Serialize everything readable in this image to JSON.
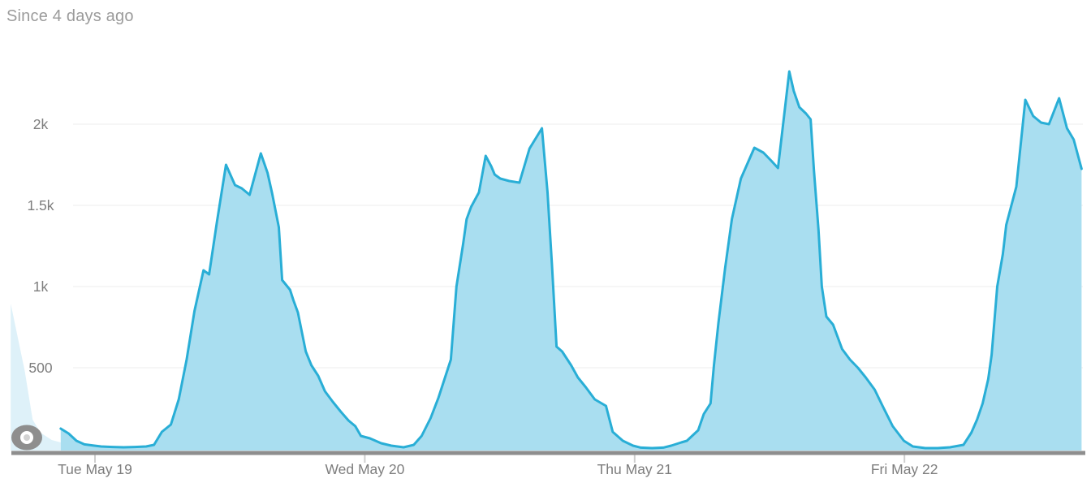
{
  "colors": {
    "line": "#29aed6",
    "area_fill": "#a9def0",
    "faded_fill": "#def1f9",
    "grid": "#eeeeee",
    "axis_bar": "#8e8e8e",
    "tick": "#cfcfcf",
    "axis_label": "#7d7d7d",
    "title": "#9b9b9b",
    "icon_ring": "#8e8e8e",
    "icon_inner": "#ffffff",
    "icon_center": "#d2d2d2"
  },
  "chart_data": {
    "type": "area",
    "title": "Since 4 days ago",
    "xlabel": "",
    "ylabel": "",
    "legend": null,
    "grid": true,
    "x_axis": {
      "unit": "hours since chart start (~Mon May 18 15:30)",
      "range": [
        0,
        96.4
      ],
      "ticks": [
        {
          "t": 8.45,
          "label": "Tue May 19"
        },
        {
          "t": 32.45,
          "label": "Wed May 20"
        },
        {
          "t": 56.45,
          "label": "Thu May 21"
        },
        {
          "t": 80.45,
          "label": "Fri May 22"
        }
      ]
    },
    "y_axis": {
      "range": [
        0,
        2500
      ],
      "ticks": [
        {
          "v": 500,
          "label": "500"
        },
        {
          "v": 1000,
          "label": "1k"
        },
        {
          "v": 1500,
          "label": "1.5k"
        },
        {
          "v": 2000,
          "label": "2k"
        }
      ]
    },
    "faded_lead_in_points": [
      [
        0.95,
        895
      ],
      [
        2.2,
        480
      ],
      [
        2.9,
        180
      ],
      [
        3.6,
        100
      ],
      [
        4.6,
        55
      ],
      [
        5.4,
        40
      ]
    ],
    "points": [
      [
        5.4,
        125
      ],
      [
        6.1,
        95
      ],
      [
        6.8,
        50
      ],
      [
        7.5,
        28
      ],
      [
        8.4,
        20
      ],
      [
        9,
        15
      ],
      [
        10,
        12
      ],
      [
        11,
        10
      ],
      [
        12,
        12
      ],
      [
        13,
        15
      ],
      [
        13.7,
        25
      ],
      [
        14.4,
        105
      ],
      [
        15.2,
        150
      ],
      [
        15.9,
        305
      ],
      [
        16.6,
        550
      ],
      [
        17.3,
        850
      ],
      [
        18.1,
        1100
      ],
      [
        18.6,
        1075
      ],
      [
        19.3,
        1400
      ],
      [
        20.1,
        1750
      ],
      [
        20.9,
        1625
      ],
      [
        21.5,
        1605
      ],
      [
        22.2,
        1565
      ],
      [
        23.2,
        1820
      ],
      [
        23.8,
        1700
      ],
      [
        24.2,
        1575
      ],
      [
        24.8,
        1365
      ],
      [
        25.1,
        1040
      ],
      [
        25.8,
        980
      ],
      [
        26.1,
        915
      ],
      [
        26.5,
        840
      ],
      [
        27.2,
        600
      ],
      [
        27.7,
        515
      ],
      [
        28.3,
        450
      ],
      [
        28.9,
        355
      ],
      [
        29.6,
        290
      ],
      [
        30.3,
        230
      ],
      [
        31,
        175
      ],
      [
        31.6,
        140
      ],
      [
        32.1,
        80
      ],
      [
        32.9,
        65
      ],
      [
        33.9,
        35
      ],
      [
        34.8,
        20
      ],
      [
        35.9,
        10
      ],
      [
        36.8,
        25
      ],
      [
        37.5,
        80
      ],
      [
        38.3,
        190
      ],
      [
        39,
        315
      ],
      [
        40.1,
        550
      ],
      [
        40.6,
        1000
      ],
      [
        41.2,
        1265
      ],
      [
        41.5,
        1415
      ],
      [
        41.9,
        1490
      ],
      [
        42.6,
        1580
      ],
      [
        43.2,
        1805
      ],
      [
        43.7,
        1740
      ],
      [
        44,
        1690
      ],
      [
        44.5,
        1665
      ],
      [
        45.3,
        1650
      ],
      [
        46.2,
        1640
      ],
      [
        47.1,
        1850
      ],
      [
        48.2,
        1975
      ],
      [
        48.7,
        1580
      ],
      [
        49.1,
        1130
      ],
      [
        49.5,
        630
      ],
      [
        50,
        600
      ],
      [
        50.8,
        515
      ],
      [
        51.4,
        440
      ],
      [
        52.1,
        380
      ],
      [
        52.9,
        305
      ],
      [
        53.9,
        265
      ],
      [
        54.5,
        105
      ],
      [
        55.4,
        50
      ],
      [
        56.3,
        20
      ],
      [
        57,
        8
      ],
      [
        58,
        5
      ],
      [
        59,
        8
      ],
      [
        59.7,
        20
      ],
      [
        60.6,
        40
      ],
      [
        61.1,
        50
      ],
      [
        62.1,
        115
      ],
      [
        62.6,
        215
      ],
      [
        63.2,
        280
      ],
      [
        63.5,
        515
      ],
      [
        63.9,
        775
      ],
      [
        64.5,
        1115
      ],
      [
        65.1,
        1415
      ],
      [
        65.9,
        1665
      ],
      [
        67.1,
        1855
      ],
      [
        67.9,
        1825
      ],
      [
        68.6,
        1775
      ],
      [
        69.2,
        1730
      ],
      [
        70.2,
        2325
      ],
      [
        70.6,
        2205
      ],
      [
        71.1,
        2105
      ],
      [
        71.7,
        2065
      ],
      [
        72.1,
        2030
      ],
      [
        72.4,
        1715
      ],
      [
        72.8,
        1350
      ],
      [
        73.1,
        1000
      ],
      [
        73.5,
        815
      ],
      [
        74.1,
        765
      ],
      [
        74.9,
        615
      ],
      [
        75.6,
        550
      ],
      [
        76.3,
        500
      ],
      [
        77,
        440
      ],
      [
        77.8,
        365
      ],
      [
        78.5,
        265
      ],
      [
        79.4,
        140
      ],
      [
        80.4,
        50
      ],
      [
        81.2,
        15
      ],
      [
        82.3,
        5
      ],
      [
        83.4,
        5
      ],
      [
        84.5,
        10
      ],
      [
        85.7,
        25
      ],
      [
        86.4,
        100
      ],
      [
        86.9,
        180
      ],
      [
        87.4,
        280
      ],
      [
        87.9,
        430
      ],
      [
        88.2,
        580
      ],
      [
        88.7,
        1000
      ],
      [
        89.2,
        1200
      ],
      [
        89.5,
        1380
      ],
      [
        90.4,
        1615
      ],
      [
        91.2,
        2150
      ],
      [
        91.9,
        2050
      ],
      [
        92.6,
        2010
      ],
      [
        93.3,
        2000
      ],
      [
        94.2,
        2160
      ],
      [
        94.9,
        1975
      ],
      [
        95.5,
        1905
      ],
      [
        96.2,
        1725
      ]
    ]
  }
}
